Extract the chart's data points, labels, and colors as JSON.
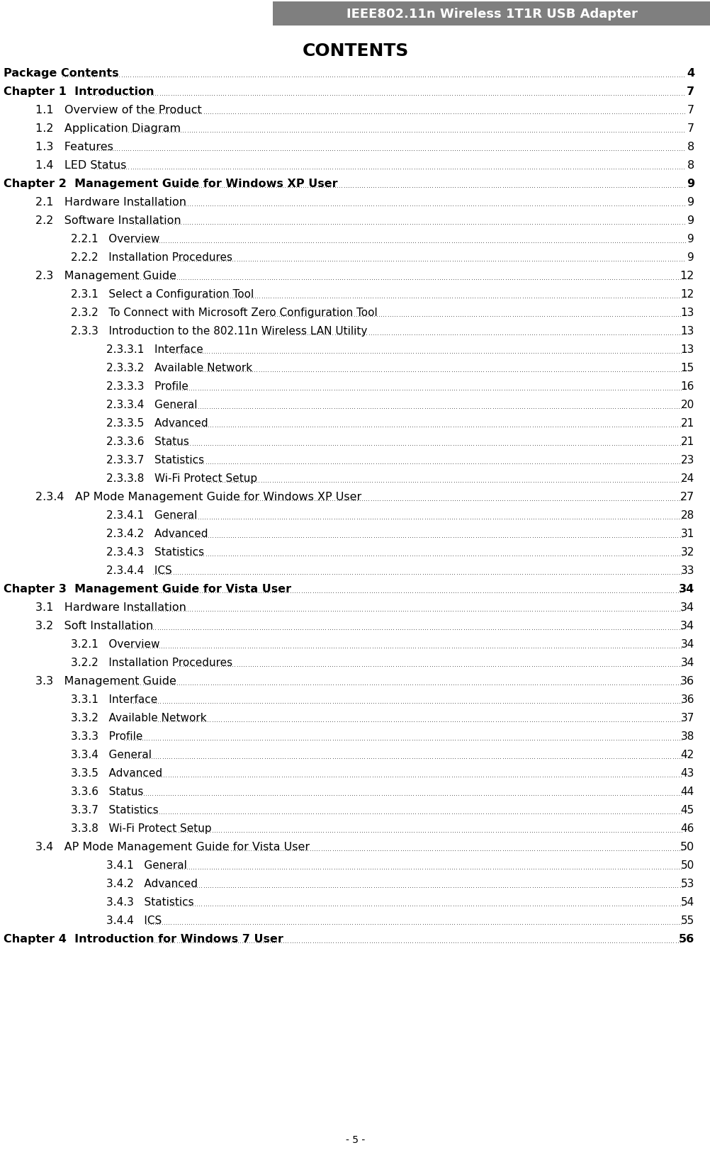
{
  "header_text": "IEEE802.11n Wireless 1T1R USB Adapter",
  "header_bg": "#7f7f7f",
  "header_text_color": "#ffffff",
  "title": "CONTENTS",
  "footer_text": "- 5 -",
  "bg_color": "#ffffff",
  "text_color": "#000000",
  "entries": [
    {
      "indent": 0,
      "label": "Package Contents",
      "page": "4"
    },
    {
      "indent": 0,
      "label": "Chapter 1  Introduction",
      "page": "7"
    },
    {
      "indent": 1,
      "label": "1.1   Overview of the Product",
      "page": "7"
    },
    {
      "indent": 1,
      "label": "1.2   Application Diagram",
      "page": "7"
    },
    {
      "indent": 1,
      "label": "1.3   Features",
      "page": "8"
    },
    {
      "indent": 1,
      "label": "1.4   LED Status",
      "page": "8"
    },
    {
      "indent": 0,
      "label": "Chapter 2  Management Guide for Windows XP User",
      "page": "9"
    },
    {
      "indent": 1,
      "label": "2.1   Hardware Installation",
      "page": "9"
    },
    {
      "indent": 1,
      "label": "2.2   Software Installation",
      "page": "9"
    },
    {
      "indent": 2,
      "label": "2.2.1   Overview",
      "page": "9"
    },
    {
      "indent": 2,
      "label": "2.2.2   Installation Procedures",
      "page": "9"
    },
    {
      "indent": 1,
      "label": "2.3   Management Guide",
      "page": "12"
    },
    {
      "indent": 2,
      "label": "2.3.1   Select a Configuration Tool",
      "page": "12"
    },
    {
      "indent": 2,
      "label": "2.3.2   To Connect with Microsoft Zero Configuration Tool",
      "page": "13"
    },
    {
      "indent": 2,
      "label": "2.3.3   Introduction to the 802.11n Wireless LAN Utility",
      "page": "13"
    },
    {
      "indent": 3,
      "label": "2.3.3.1   Interface",
      "page": "13"
    },
    {
      "indent": 3,
      "label": "2.3.3.2   Available Network",
      "page": "15"
    },
    {
      "indent": 3,
      "label": "2.3.3.3   Profile",
      "page": "16"
    },
    {
      "indent": 3,
      "label": "2.3.3.4   General",
      "page": "20"
    },
    {
      "indent": 3,
      "label": "2.3.3.5   Advanced",
      "page": "21"
    },
    {
      "indent": 3,
      "label": "2.3.3.6   Status",
      "page": "21"
    },
    {
      "indent": 3,
      "label": "2.3.3.7   Statistics",
      "page": "23"
    },
    {
      "indent": 3,
      "label": "2.3.3.8   Wi-Fi Protect Setup",
      "page": "24"
    },
    {
      "indent": 1,
      "label": "2.3.4   AP Mode Management Guide for Windows XP User",
      "page": "27"
    },
    {
      "indent": 3,
      "label": "2.3.4.1   General",
      "page": "28"
    },
    {
      "indent": 3,
      "label": "2.3.4.2   Advanced",
      "page": "31"
    },
    {
      "indent": 3,
      "label": "2.3.4.3   Statistics",
      "page": "32"
    },
    {
      "indent": 3,
      "label": "2.3.4.4   ICS",
      "page": "33"
    },
    {
      "indent": 0,
      "label": "Chapter 3  Management Guide for Vista User",
      "page": "34"
    },
    {
      "indent": 1,
      "label": "3.1   Hardware Installation",
      "page": "34"
    },
    {
      "indent": 1,
      "label": "3.2   Soft Installation",
      "page": "34"
    },
    {
      "indent": 2,
      "label": "3.2.1   Overview",
      "page": "34"
    },
    {
      "indent": 2,
      "label": "3.2.2   Installation Procedures",
      "page": "34"
    },
    {
      "indent": 1,
      "label": "3.3   Management Guide",
      "page": "36"
    },
    {
      "indent": 2,
      "label": "3.3.1   Interface",
      "page": "36"
    },
    {
      "indent": 2,
      "label": "3.3.2   Available Network",
      "page": "37"
    },
    {
      "indent": 2,
      "label": "3.3.3   Profile",
      "page": "38"
    },
    {
      "indent": 2,
      "label": "3.3.4   General",
      "page": "42"
    },
    {
      "indent": 2,
      "label": "3.3.5   Advanced",
      "page": "43"
    },
    {
      "indent": 2,
      "label": "3.3.6   Status",
      "page": "44"
    },
    {
      "indent": 2,
      "label": "3.3.7   Statistics",
      "page": "45"
    },
    {
      "indent": 2,
      "label": "3.3.8   Wi-Fi Protect Setup",
      "page": "46"
    },
    {
      "indent": 1,
      "label": "3.4   AP Mode Management Guide for Vista User",
      "page": "50"
    },
    {
      "indent": 3,
      "label": "3.4.1   General",
      "page": "50"
    },
    {
      "indent": 3,
      "label": "3.4.2   Advanced",
      "page": "53"
    },
    {
      "indent": 3,
      "label": "3.4.3   Statistics",
      "page": "54"
    },
    {
      "indent": 3,
      "label": "3.4.4   ICS",
      "page": "55"
    },
    {
      "indent": 0,
      "label": "Chapter 4  Introduction for Windows 7 User",
      "page": "56"
    }
  ]
}
